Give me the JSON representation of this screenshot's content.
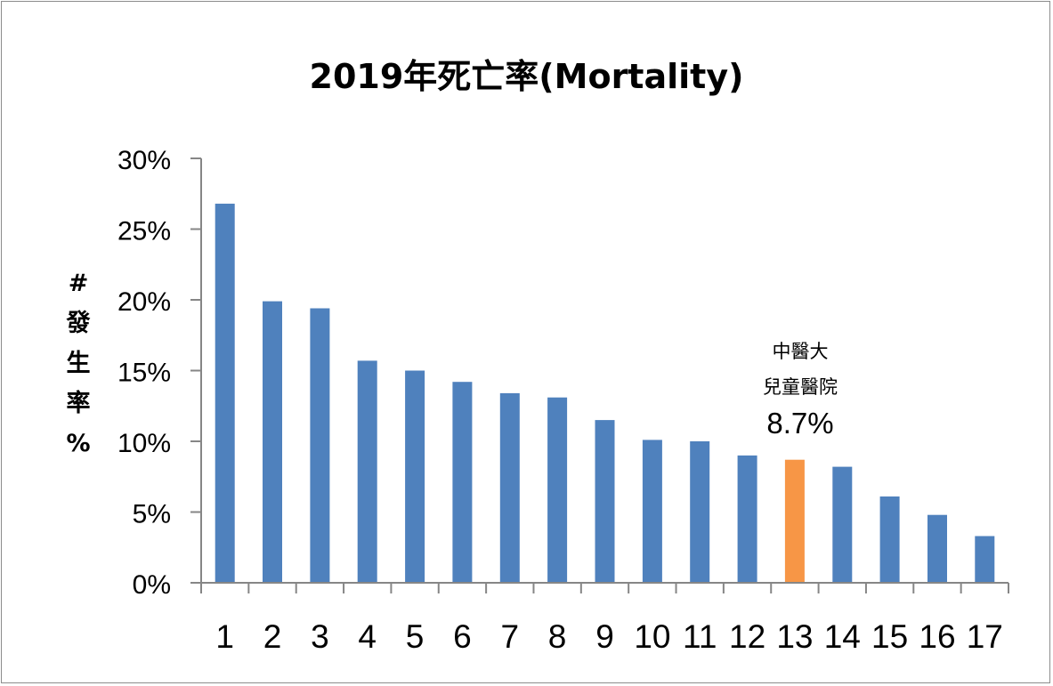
{
  "chart_data": {
    "type": "bar",
    "title": "2019年死亡率(Mortality)",
    "ylabel_lines": [
      "#",
      "發",
      "生",
      "率",
      "%"
    ],
    "categories": [
      "1",
      "2",
      "3",
      "4",
      "5",
      "6",
      "7",
      "8",
      "9",
      "10",
      "11",
      "12",
      "13",
      "14",
      "15",
      "16",
      "17"
    ],
    "values": [
      26.8,
      19.9,
      19.4,
      15.7,
      15.0,
      14.2,
      13.4,
      13.1,
      11.5,
      10.1,
      10.0,
      9.0,
      8.7,
      8.2,
      6.1,
      4.8,
      3.3
    ],
    "ylim": [
      0,
      30
    ],
    "yticks": [
      0,
      5,
      10,
      15,
      20,
      25,
      30
    ],
    "ytick_labels": [
      "0%",
      "5%",
      "10%",
      "15%",
      "20%",
      "25%",
      "30%"
    ],
    "highlight_index": 12,
    "bar_color": "#4f81bd",
    "highlight_color": "#f79646",
    "annotation": {
      "line1": "中醫大",
      "line2": "兒童醫院",
      "value_label": "8.7%"
    }
  }
}
